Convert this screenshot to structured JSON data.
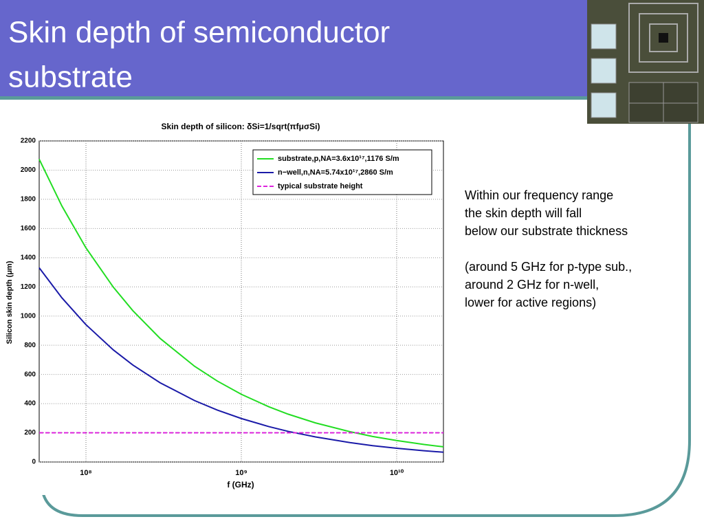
{
  "slide": {
    "title": [
      "Skin depth of semiconductor",
      "substrate"
    ],
    "body": [
      "Within our frequency range",
      "the skin depth will fall",
      "below our substrate thickness",
      "(around 5 GHz for p-type sub.,",
      "around 2 GHz for n-well,",
      "lower for active regions)"
    ]
  },
  "chart_data": {
    "type": "line",
    "title": "Skin depth of silicon: δSi=1/sqrt(πfμσSi)",
    "x_label": "f (GHz)",
    "y_label": "Silicon skin depth (μm)",
    "x": [
      50000000,
      70000000,
      100000000,
      150000000,
      200000000,
      300000000,
      500000000,
      700000000,
      1000000000,
      1500000000,
      2000000000,
      3000000000,
      5000000000,
      7000000000,
      10000000000,
      15000000000,
      20000000000
    ],
    "series": [
      {
        "name": "substrate,p,NA=3.6x10¹⁷,1176 S/m",
        "color": "#22dd22",
        "style": "solid",
        "values": [
          2075,
          1754,
          1467,
          1198,
          1038,
          847,
          656,
          555,
          464,
          379,
          328,
          268,
          208,
          175,
          147,
          120,
          104
        ]
      },
      {
        "name": "n−well,n,NA=5.74x10¹⁷,2860 S/m",
        "color": "#1a1aa8",
        "style": "solid",
        "values": [
          1331,
          1125,
          941,
          768,
          665,
          543,
          421,
          356,
          298,
          243,
          210,
          172,
          133,
          112,
          94,
          77,
          67
        ]
      },
      {
        "name": "typical substrate height",
        "color": "#dd22dd",
        "style": "dashed",
        "values": [
          200,
          200,
          200,
          200,
          200,
          200,
          200,
          200,
          200,
          200,
          200,
          200,
          200,
          200,
          200,
          200,
          200
        ]
      }
    ],
    "xlim": [
      50000000,
      20000000000
    ],
    "log_x": true,
    "xticks": [
      {
        "value": 100000000,
        "label": "10⁸"
      },
      {
        "value": 1000000000,
        "label": "10⁹"
      },
      {
        "value": 10000000000,
        "label": "10¹⁰"
      }
    ],
    "ylim": [
      0,
      2200
    ],
    "yticks": [
      0,
      200,
      400,
      600,
      800,
      1000,
      1200,
      1400,
      1600,
      1800,
      2000,
      2200
    ],
    "grid": true,
    "legend": "upper right"
  }
}
